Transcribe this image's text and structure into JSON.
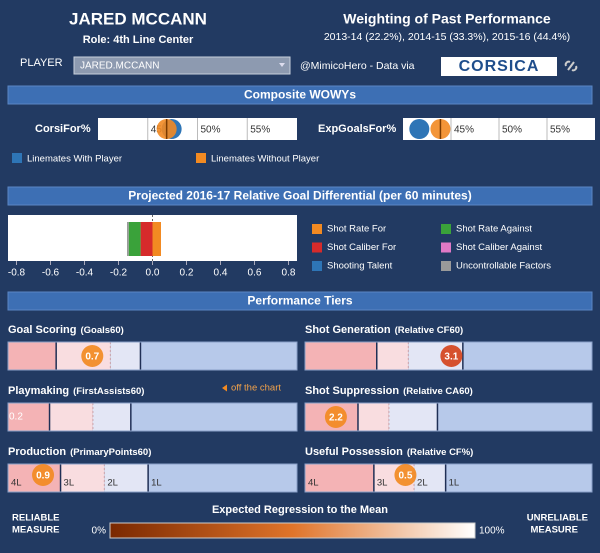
{
  "header": {
    "player_name": "JARED MCCANN",
    "role": "Role: 4th Line Center",
    "weighting_title": "Weighting of Past Performance",
    "weighting_text": "2013-14 (22.2%), 2014-15 (33.3%), 2015-16 (44.4%)"
  },
  "controls": {
    "player_label": "PLAYER",
    "player_value": "JARED.MCCANN",
    "credit": "@MimicoHero - Data via",
    "logo": "CORSICA"
  },
  "wowy": {
    "title": "Composite WOWYs",
    "charts": [
      {
        "label": "CorsiFor%",
        "xlim": [
          40,
          60
        ],
        "xticks": [
          {
            "value": 45,
            "label": "45%"
          },
          {
            "value": 50,
            "label": "50%"
          },
          {
            "value": 55,
            "label": "55%"
          }
        ],
        "with": 47.4,
        "without": 46.9
      },
      {
        "label": "ExpGoalsFor%",
        "xlim": [
          40,
          60
        ],
        "xticks": [
          {
            "value": 45,
            "label": "45%"
          },
          {
            "value": 50,
            "label": "50%"
          },
          {
            "value": 55,
            "label": "55%"
          }
        ],
        "with": 41.7,
        "without": 43.9
      }
    ],
    "legend": [
      {
        "name": "Linemates With Player",
        "color": "#2e75b6"
      },
      {
        "name": "Linemates Without Player",
        "color": "#f28a22"
      }
    ]
  },
  "goal_diff": {
    "title": "Projected 2016-17 Relative Goal Differential (per 60 minutes)",
    "xlim": [
      -0.85,
      0.85
    ],
    "xticks": [
      -0.8,
      -0.6,
      -0.4,
      -0.2,
      {
        "value": 0,
        "label": "0.0"
      },
      0.2,
      0.4,
      0.6,
      0.8
    ],
    "series": [
      {
        "name": "Shot Rate For",
        "color": "#f28a22",
        "value": 0.05
      },
      {
        "name": "Shot Caliber For",
        "color": "#d62b2b",
        "value": -0.07
      },
      {
        "name": "Shooting Talent",
        "color": "#2e75b6",
        "value": 0
      },
      {
        "name": "Shot Rate Against",
        "color": "#3aa23a",
        "value": -0.07
      },
      {
        "name": "Shot Caliber Against",
        "color": "#e079c6",
        "value": 0
      },
      {
        "name": "Uncontrollable Factors",
        "color": "#9a9a9a",
        "value": -0.01
      }
    ]
  },
  "tiers": {
    "title": "Performance Tiers",
    "off_chart_note": "off the chart",
    "panels": [
      {
        "name": "Goal Scoring",
        "metric": "(Goals60)",
        "xlim": [
          0,
          2.4
        ],
        "thresholds": [
          0.4,
          0.85,
          1.1
        ],
        "value": 0.7,
        "dot_color": "#f28a22"
      },
      {
        "name": "Shot Generation",
        "metric": "(Relative CF60)",
        "xlim": [
          -2,
          8
        ],
        "thresholds": [
          0.5,
          1.6,
          3.5
        ],
        "value": 3.1,
        "dot_color": "#d5441c"
      },
      {
        "name": "Playmaking",
        "metric": "(FirstAssists60)",
        "xlim": [
          0.4,
          2.0
        ],
        "thresholds": [
          0.63,
          0.87,
          1.08
        ],
        "value": 0.2,
        "dot_color": "#f28a22"
      },
      {
        "name": "Shot Suppression",
        "metric": "(Relative CA60)",
        "xlim": [
          1.5,
          8
        ],
        "thresholds": [
          2.7,
          3.4,
          4.5
        ],
        "value": 2.2,
        "dot_color": "#f28a22"
      },
      {
        "name": "Production",
        "metric": "(PrimaryPoints60)",
        "xlim": [
          0.5,
          3.8
        ],
        "thresholds": [
          1.1,
          1.6,
          2.1
        ],
        "value": 0.9,
        "dot_color": "#f28a22",
        "tier_labels": [
          "4L",
          "3L",
          "2L",
          "1L"
        ]
      },
      {
        "name": "Useful Possession",
        "metric": "(Relative CF%)",
        "xlim": [
          -3,
          7
        ],
        "thresholds": [
          -0.6,
          0.8,
          1.9
        ],
        "value": 0.5,
        "dot_color": "#f28a22",
        "tier_labels": [
          "4L",
          "3L",
          "2L",
          "1L"
        ]
      }
    ]
  },
  "footer": {
    "left": [
      "RELIABLE",
      "MEASURE"
    ],
    "title": "Expected Regression to the Mean",
    "scale_min": "0%",
    "scale_max": "100%",
    "right": [
      "UNRELIABLE",
      "MEASURE"
    ]
  }
}
